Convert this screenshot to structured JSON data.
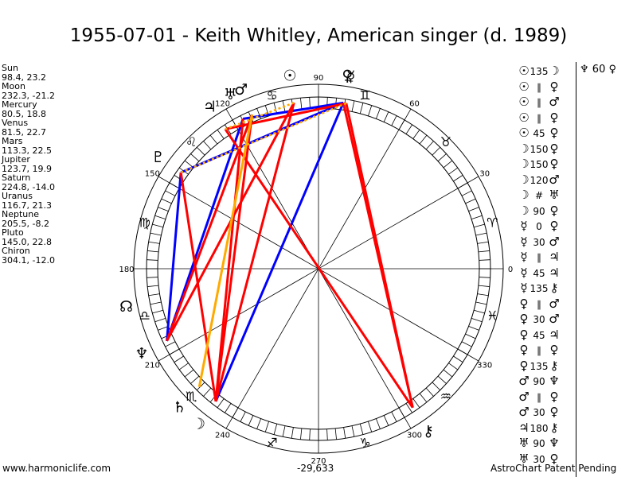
{
  "title": "1955-07-01 - Keith Whitley, American singer (d. 1989)",
  "positions": [
    {
      "name": "Sun",
      "coords": "98.4, 23.2"
    },
    {
      "name": "Moon",
      "coords": "232.3, -21.2"
    },
    {
      "name": "Mercury",
      "coords": "80.5, 18.8"
    },
    {
      "name": "Venus",
      "coords": "81.5, 22.7"
    },
    {
      "name": "Mars",
      "coords": "113.3, 22.5"
    },
    {
      "name": "Jupiter",
      "coords": "123.7, 19.9"
    },
    {
      "name": "Saturn",
      "coords": "224.8, -14.0"
    },
    {
      "name": "Uranus",
      "coords": "116.7, 21.3"
    },
    {
      "name": "Neptune",
      "coords": "205.5, -8.2"
    },
    {
      "name": "Pluto",
      "coords": "145.0, 22.8"
    },
    {
      "name": "Chiron",
      "coords": "304.1, -12.0"
    }
  ],
  "aspects": [
    {
      "a": "☉",
      "asp": "135",
      "b": "☽"
    },
    {
      "a": "☉",
      "asp": "∥",
      "b": "♀"
    },
    {
      "a": "☉",
      "asp": "∥",
      "b": "♂"
    },
    {
      "a": "☉",
      "asp": "∥",
      "b": "♀"
    },
    {
      "a": "☉",
      "asp": "45",
      "b": "♀"
    },
    {
      "a": "☽",
      "asp": "150",
      "b": "♀"
    },
    {
      "a": "☽",
      "asp": "150",
      "b": "♀"
    },
    {
      "a": "☽",
      "asp": "120",
      "b": "♂"
    },
    {
      "a": "☽",
      "asp": "#",
      "b": "♅"
    },
    {
      "a": "☽",
      "asp": "90",
      "b": "♀"
    },
    {
      "a": "☿",
      "asp": "0",
      "b": "♀"
    },
    {
      "a": "☿",
      "asp": "30",
      "b": "♂"
    },
    {
      "a": "☿",
      "asp": "∥",
      "b": "♃"
    },
    {
      "a": "☿",
      "asp": "45",
      "b": "♃"
    },
    {
      "a": "☿",
      "asp": "135",
      "b": "⚷"
    },
    {
      "a": "♀",
      "asp": "∥",
      "b": "♂"
    },
    {
      "a": "♀",
      "asp": "30",
      "b": "♂"
    },
    {
      "a": "♀",
      "asp": "45",
      "b": "♃"
    },
    {
      "a": "♀",
      "asp": "∥",
      "b": "♀"
    },
    {
      "a": "♀",
      "asp": "135",
      "b": "⚷"
    },
    {
      "a": "♂",
      "asp": "90",
      "b": "♆"
    },
    {
      "a": "♂",
      "asp": "∥",
      "b": "♀"
    },
    {
      "a": "♂",
      "asp": "30",
      "b": "♀"
    },
    {
      "a": "♃",
      "asp": "180",
      "b": "⚷"
    },
    {
      "a": "♅",
      "asp": "90",
      "b": "♆"
    },
    {
      "a": "♅",
      "asp": "30",
      "b": "♀"
    }
  ],
  "extra_aspect": {
    "a": "♆",
    "asp": "60",
    "b": "♀"
  },
  "footer": {
    "left": "www.harmoniclife.com",
    "center": "-29,633",
    "right": "AstroChart Patent Pending"
  },
  "chart_data": {
    "type": "diagram",
    "degree_labels": [
      "0",
      "30",
      "60",
      "90",
      "120",
      "150",
      "180",
      "210",
      "240",
      "270",
      "300",
      "330"
    ],
    "signs": [
      {
        "glyph": "♈",
        "lon": 15
      },
      {
        "glyph": "♉",
        "lon": 45
      },
      {
        "glyph": "♊",
        "lon": 75
      },
      {
        "glyph": "♋",
        "lon": 105
      },
      {
        "glyph": "♌",
        "lon": 135
      },
      {
        "glyph": "♍",
        "lon": 165
      },
      {
        "glyph": "♎",
        "lon": 195
      },
      {
        "glyph": "♏",
        "lon": 225
      },
      {
        "glyph": "♐",
        "lon": 255
      },
      {
        "glyph": "♑",
        "lon": 285
      },
      {
        "glyph": "♒",
        "lon": 315
      },
      {
        "glyph": "♓",
        "lon": 345
      }
    ],
    "planets": [
      {
        "glyph": "☉",
        "lon": 98.4
      },
      {
        "glyph": "☽",
        "lon": 232.3
      },
      {
        "glyph": "☿",
        "lon": 80.5
      },
      {
        "glyph": "♀",
        "lon": 81.5
      },
      {
        "glyph": "♂",
        "lon": 113.3
      },
      {
        "glyph": "♃",
        "lon": 123.7
      },
      {
        "glyph": "♄",
        "lon": 224.8
      },
      {
        "glyph": "♅",
        "lon": 116.7
      },
      {
        "glyph": "♆",
        "lon": 205.5
      },
      {
        "glyph": "♇",
        "lon": 145.0
      },
      {
        "glyph": "⚷",
        "lon": 304.1
      },
      {
        "glyph": "☊",
        "lon": 191.0
      }
    ],
    "aspect_lines": [
      {
        "from": 81.5,
        "to": 232.3,
        "color": "#0000ff",
        "style": "solid"
      },
      {
        "from": 81.5,
        "to": 145.0,
        "color": "#0000ff",
        "style": "solid"
      },
      {
        "from": 81.5,
        "to": 116.7,
        "color": "#0000ff",
        "style": "solid"
      },
      {
        "from": 116.7,
        "to": 205.5,
        "color": "#0000ff",
        "style": "solid"
      },
      {
        "from": 145.0,
        "to": 205.5,
        "color": "#0000ff",
        "style": "solid"
      },
      {
        "from": 80.5,
        "to": 304.1,
        "color": "#ff0000",
        "style": "solid"
      },
      {
        "from": 81.5,
        "to": 304.1,
        "color": "#ff0000",
        "style": "solid"
      },
      {
        "from": 123.7,
        "to": 304.1,
        "color": "#ff0000",
        "style": "solid"
      },
      {
        "from": 98.4,
        "to": 232.3,
        "color": "#ff0000",
        "style": "solid"
      },
      {
        "from": 113.3,
        "to": 232.3,
        "color": "#ff0000",
        "style": "solid"
      },
      {
        "from": 116.7,
        "to": 232.3,
        "color": "#ff0000",
        "style": "solid"
      },
      {
        "from": 113.3,
        "to": 205.5,
        "color": "#ff0000",
        "style": "solid"
      },
      {
        "from": 145.0,
        "to": 232.3,
        "color": "#ff0000",
        "style": "solid"
      },
      {
        "from": 98.4,
        "to": 205.5,
        "color": "#ff0000",
        "style": "solid"
      },
      {
        "from": 80.5,
        "to": 123.7,
        "color": "#ff0000",
        "style": "solid"
      },
      {
        "from": 98.4,
        "to": 232.3,
        "color": "#ff0000",
        "style": "dotted"
      },
      {
        "from": 113.3,
        "to": 224.8,
        "color": "#ffaa00",
        "style": "solid"
      },
      {
        "from": 80.5,
        "to": 145.0,
        "color": "#ffaa00",
        "style": "dotted"
      },
      {
        "from": 98.4,
        "to": 123.7,
        "color": "#ffaa00",
        "style": "dotted"
      }
    ]
  }
}
